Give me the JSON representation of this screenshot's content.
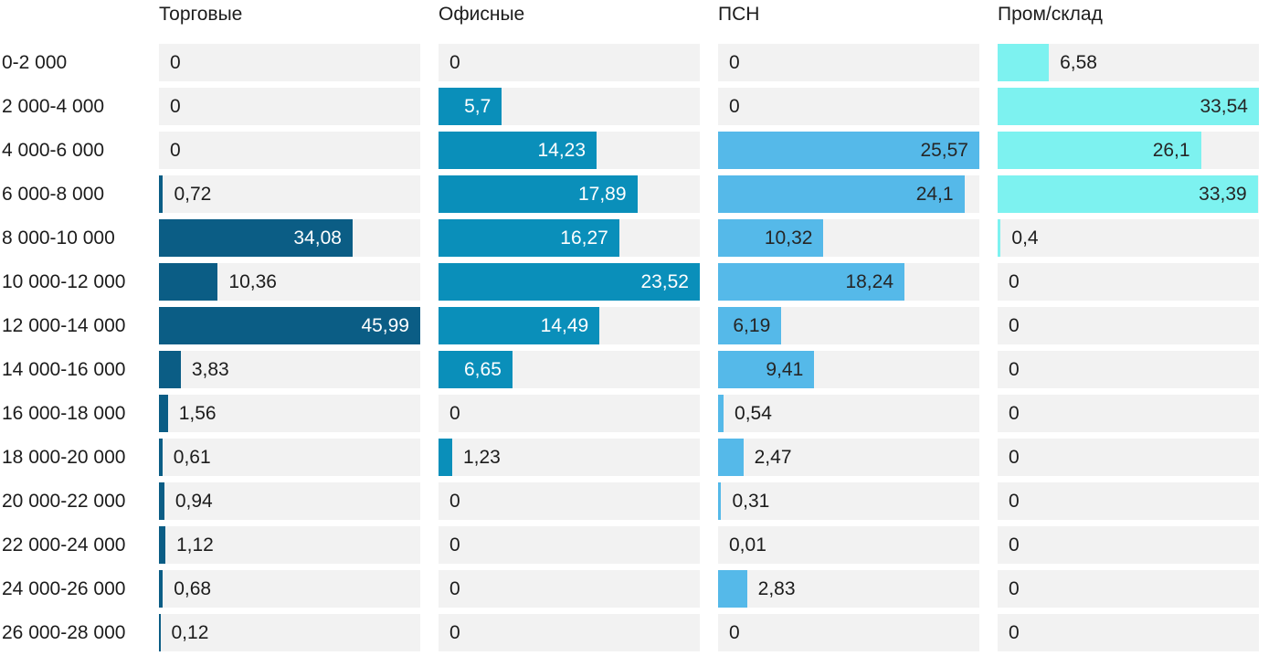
{
  "chart_data": {
    "type": "bar",
    "orientation": "horizontal",
    "title": "",
    "scaling": "per-column-max",
    "decimal_separator": ",",
    "grid": false,
    "legend_position": "column-headers-top",
    "track_color": "#f2f2f2",
    "label_text_color": "#1c1c1c",
    "categories": [
      "0-2 000",
      "2 000-4 000",
      "4 000-6 000",
      "6 000-8 000",
      "8 000-10 000",
      "10 000-12 000",
      "12 000-14 000",
      "14 000-16 000",
      "16 000-18 000",
      "18 000-20 000",
      "20 000-22 000",
      "22 000-24 000",
      "24 000-26 000",
      "26 000-28 000"
    ],
    "series": [
      {
        "name": "Торговые",
        "color": "#0b5d85",
        "inside_label_color": "#ffffff",
        "column_max": 45.99,
        "values": [
          0,
          0,
          0,
          0.72,
          34.08,
          10.36,
          45.99,
          3.83,
          1.56,
          0.61,
          0.94,
          1.12,
          0.68,
          0.12
        ]
      },
      {
        "name": "Офисные",
        "color": "#0a8fba",
        "inside_label_color": "#ffffff",
        "column_max": 23.52,
        "values": [
          0,
          5.7,
          14.23,
          17.89,
          16.27,
          23.52,
          14.49,
          6.65,
          0,
          1.23,
          0,
          0,
          0,
          0
        ]
      },
      {
        "name": "ПСН",
        "color": "#55b9e9",
        "inside_label_color": "#262626",
        "column_max": 25.57,
        "values": [
          0,
          0,
          25.57,
          24.1,
          10.32,
          18.24,
          6.19,
          9.41,
          0.54,
          2.47,
          0.31,
          0.01,
          2.83,
          0
        ]
      },
      {
        "name": "Пром/склад",
        "color": "#7df2f0",
        "inside_label_color": "#262626",
        "column_max": 33.54,
        "values": [
          6.58,
          33.54,
          26.1,
          33.39,
          0.4,
          0,
          0,
          0,
          0,
          0,
          0,
          0,
          0,
          0
        ]
      }
    ]
  }
}
